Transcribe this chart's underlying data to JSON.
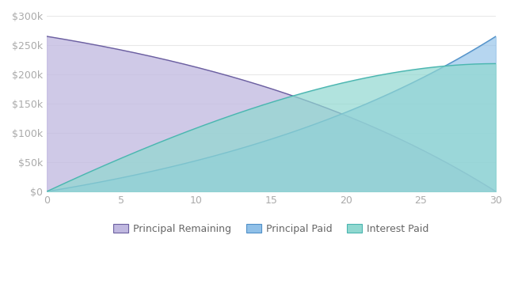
{
  "loan_amount": 265000,
  "annual_rate": 0.045,
  "years": 30,
  "ylim": [
    0,
    300000
  ],
  "yticks": [
    0,
    50000,
    100000,
    150000,
    200000,
    250000,
    300000
  ],
  "ytick_labels": [
    "$0",
    "$50k",
    "$100k",
    "$150k",
    "$200k",
    "$250k",
    "$300k"
  ],
  "xticks": [
    0,
    5,
    10,
    15,
    20,
    25,
    30
  ],
  "color_principal_remaining_line": "#6b5fa0",
  "color_principal_remaining_fill": "#c0b8e0",
  "color_principal_paid_line": "#5090c8",
  "color_principal_paid_fill": "#90c0e8",
  "color_interest_paid_line": "#4ab5b0",
  "color_interest_paid_fill": "#90d8d0",
  "legend_labels": [
    "Principal Remaining",
    "Principal Paid",
    "Interest Paid"
  ],
  "background_color": "#ffffff",
  "grid_color": "#e8e8e8",
  "tick_color": "#aaaaaa",
  "alpha_remaining": 0.75,
  "alpha_paid": 0.65,
  "alpha_interest": 0.7
}
